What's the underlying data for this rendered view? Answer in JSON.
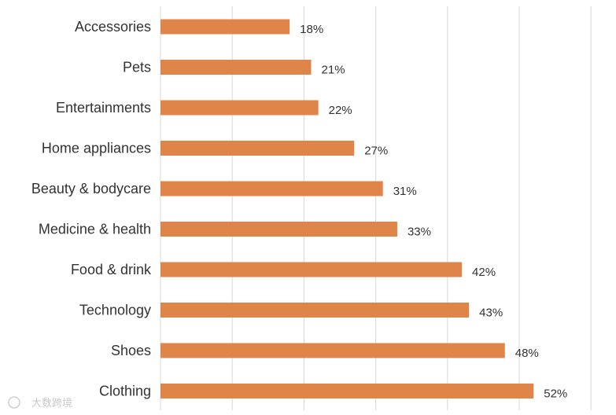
{
  "chart_data": {
    "type": "bar",
    "orientation": "horizontal",
    "categories": [
      "Accessories",
      "Pets",
      "Entertainments",
      "Home appliances",
      "Beauty & bodycare",
      "Medicine & health",
      "Food & drink",
      "Technology",
      "Shoes",
      "Clothing"
    ],
    "values": [
      18,
      21,
      22,
      27,
      31,
      33,
      42,
      43,
      48,
      52
    ],
    "value_labels": [
      "18%",
      "21%",
      "22%",
      "27%",
      "31%",
      "33%",
      "42%",
      "43%",
      "48%",
      "52%"
    ],
    "xlim": [
      0,
      60
    ],
    "grid_step": 10,
    "grid": true,
    "title": "",
    "xlabel": "",
    "ylabel": "",
    "bar_color": "#e0854a",
    "grid_color": "#d9d9d9"
  },
  "watermark": {
    "text": "大数跨境"
  }
}
